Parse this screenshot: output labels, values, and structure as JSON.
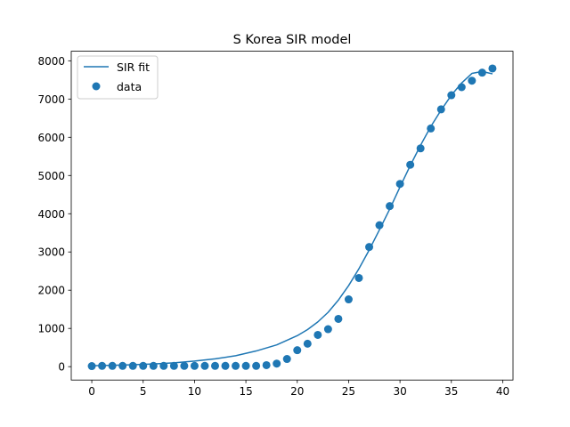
{
  "chart_data": {
    "type": "scatter",
    "title": "S Korea SIR model",
    "xlabel": "",
    "ylabel": "",
    "xlim": [
      -2,
      41
    ],
    "ylim": [
      -350,
      8250
    ],
    "xticks": [
      0,
      5,
      10,
      15,
      20,
      25,
      30,
      35,
      40
    ],
    "yticks": [
      0,
      1000,
      2000,
      3000,
      4000,
      5000,
      6000,
      7000,
      8000
    ],
    "grid": false,
    "legend_position": "top-left",
    "series": [
      {
        "name": "SIR fit",
        "kind": "line",
        "color": "#1f77b4",
        "x": [
          0,
          2,
          4,
          6,
          8,
          10,
          12,
          14,
          16,
          18,
          20,
          21,
          22,
          23,
          24,
          25,
          26,
          27,
          28,
          29,
          30,
          31,
          32,
          33,
          34,
          35,
          36,
          37,
          38,
          39
        ],
        "values": [
          25,
          35,
          50,
          70,
          100,
          145,
          205,
          285,
          410,
          570,
          810,
          970,
          1170,
          1420,
          1740,
          2120,
          2560,
          3050,
          3580,
          4120,
          4700,
          5260,
          5790,
          6280,
          6710,
          7100,
          7420,
          7670,
          7720,
          7660
        ]
      },
      {
        "name": "data",
        "kind": "scatter",
        "color": "#1f77b4",
        "x": [
          0,
          1,
          2,
          3,
          4,
          5,
          6,
          7,
          8,
          9,
          10,
          11,
          12,
          13,
          14,
          15,
          16,
          17,
          18,
          19,
          20,
          21,
          22,
          23,
          24,
          25,
          26,
          27,
          28,
          29,
          30,
          31,
          32,
          33,
          34,
          35,
          36,
          37,
          38,
          39
        ],
        "values": [
          15,
          20,
          20,
          20,
          20,
          20,
          20,
          20,
          20,
          20,
          20,
          20,
          20,
          20,
          20,
          20,
          20,
          40,
          80,
          200,
          430,
          600,
          830,
          980,
          1250,
          1760,
          2320,
          3130,
          3700,
          4200,
          4780,
          5280,
          5710,
          6230,
          6730,
          7100,
          7310,
          7480,
          7690,
          7800
        ]
      }
    ]
  }
}
